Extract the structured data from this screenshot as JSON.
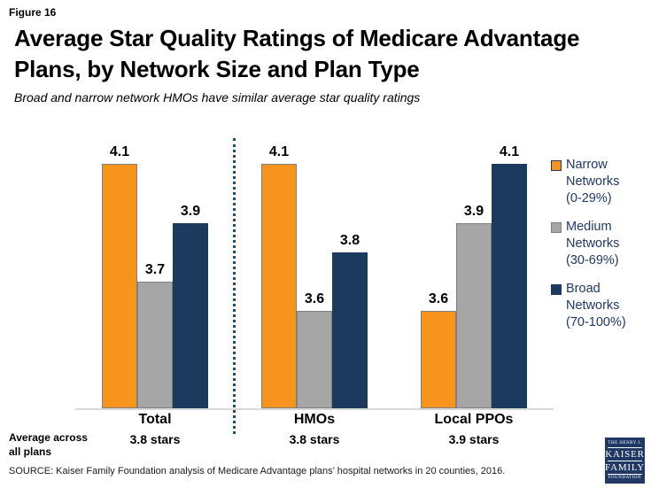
{
  "figure_label": "Figure 16",
  "title_line1": "Average Star Quality Ratings of Medicare Advantage",
  "title_line2": "Plans, by Network Size and Plan Type",
  "subtitle": "Broad and narrow network HMOs have similar average star quality ratings",
  "axis_note": {
    "line1": "Average across",
    "line2": "all plans"
  },
  "source": "SOURCE: Kaiser Family Foundation analysis of Medicare Advantage plans’ hospital networks in 20 counties, 2016.",
  "colors": {
    "narrow_orange": "#F7941E",
    "medium_gray": "#A6A6A6",
    "broad_navy": "#1B3A5E",
    "legend_text": "#1F3864",
    "separator_dots": "#1F4E79",
    "axis_line": "#D9D9D9",
    "logo_background": "#1F3864"
  },
  "chart_data": {
    "type": "bar",
    "title": "Average Star Quality Ratings of Medicare Advantage Plans, by Network Size and Plan Type",
    "subtitle": "Broad and narrow network HMOs have similar average star quality ratings",
    "categories": [
      "Total",
      "HMOs",
      "Local PPOs"
    ],
    "category_sublabels": [
      "3.8 stars",
      "3.8 stars",
      "3.9 stars"
    ],
    "series": [
      {
        "key": "narrow",
        "name": "Narrow Networks (0-29%)",
        "values": [
          4.1,
          4.1,
          3.6
        ],
        "color": "#F7941E"
      },
      {
        "key": "medium",
        "name": "Medium Networks (30-69%)",
        "values": [
          3.7,
          3.6,
          3.9
        ],
        "color": "#A6A6A6"
      },
      {
        "key": "broad",
        "name": "Broad Networks (70-100%)",
        "values": [
          3.9,
          3.8,
          4.1
        ],
        "color": "#1B3A5E"
      }
    ],
    "value_labels": true,
    "ylabel": "",
    "xlabel": "",
    "ylim": [
      3.27,
      4.2
    ],
    "grid": false,
    "legend_position": "right",
    "group_separator_after": "Total"
  },
  "logo": {
    "line1": "THE HENRY J.",
    "line2": "KAISER",
    "line3": "FAMILY",
    "line4": "FOUNDATION"
  }
}
